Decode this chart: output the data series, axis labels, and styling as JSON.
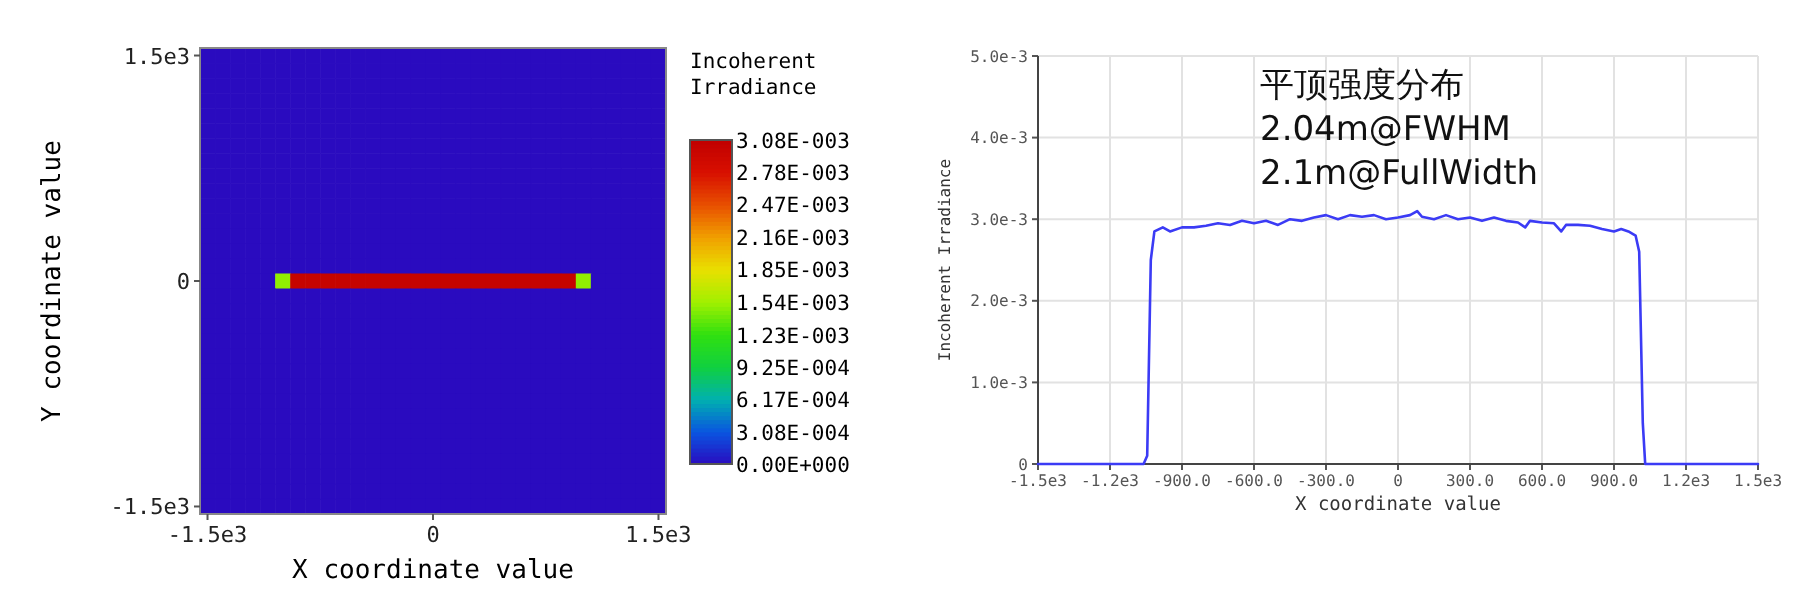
{
  "chart_data": [
    {
      "type": "heatmap",
      "xlabel": "X coordinate value",
      "ylabel": "Y coordinate value",
      "clabel": "Incoherent Irradiance",
      "clim": [
        0,
        0.00308
      ],
      "cticks": [
        {
          "value": 0,
          "label": "0.00E+000"
        },
        {
          "value": 0.000308,
          "label": "3.08E-004"
        },
        {
          "value": 0.000617,
          "label": "6.17E-004"
        },
        {
          "value": 0.000925,
          "label": "9.25E-004"
        },
        {
          "value": 0.00123,
          "label": "1.23E-003"
        },
        {
          "value": 0.00154,
          "label": "1.54E-003"
        },
        {
          "value": 0.00185,
          "label": "1.85E-003"
        },
        {
          "value": 0.00216,
          "label": "2.16E-003"
        },
        {
          "value": 0.00247,
          "label": "2.47E-003"
        },
        {
          "value": 0.00278,
          "label": "2.78E-003"
        },
        {
          "value": 0.00308,
          "label": "3.08E-003"
        }
      ],
      "colors": [
        "#2a0bbf",
        "#0a55e0",
        "#00b0b0",
        "#10d040",
        "#30e010",
        "#a0f000",
        "#e8e000",
        "#f0a000",
        "#e85000",
        "#d81000",
        "#c00000"
      ],
      "categories": [
        "-1.5e3",
        null,
        null,
        null,
        null,
        null,
        null,
        null,
        null,
        null,
        null,
        null,
        null,
        null,
        null,
        "0",
        null,
        null,
        null,
        null,
        null,
        null,
        null,
        null,
        null,
        null,
        null,
        null,
        null,
        null,
        "1.5e3"
      ],
      "y_categories": [
        "1.5e3",
        null,
        null,
        null,
        null,
        null,
        null,
        null,
        null,
        null,
        null,
        null,
        null,
        null,
        null,
        "0",
        null,
        null,
        null,
        null,
        null,
        null,
        null,
        null,
        null,
        null,
        null,
        null,
        null,
        null,
        "-1.5e3"
      ],
      "cells": [
        [
          0,
          0,
          0,
          0,
          0,
          0,
          0,
          0,
          0,
          0,
          0,
          0,
          0,
          0,
          0,
          0,
          0,
          0,
          0,
          0,
          0,
          0,
          0,
          0,
          0,
          0,
          0,
          0,
          0,
          0,
          0
        ],
        [
          0,
          0,
          0,
          0,
          0,
          0,
          0,
          0,
          0,
          0,
          0,
          0,
          0,
          0,
          0,
          0,
          0,
          0,
          0,
          0,
          0,
          0,
          0,
          0,
          0,
          0,
          0,
          0,
          0,
          0,
          0
        ],
        [
          0,
          0,
          0,
          0,
          0,
          0,
          0,
          0,
          0,
          0,
          0,
          0,
          0,
          0,
          0,
          0,
          0,
          0,
          0,
          0,
          0,
          0,
          0,
          0,
          0,
          0,
          0,
          0,
          0,
          0,
          0
        ],
        [
          0,
          0,
          0,
          0,
          0,
          0,
          0,
          0,
          0,
          0,
          0,
          0,
          0,
          0,
          0,
          0,
          0,
          0,
          0,
          0,
          0,
          0,
          0,
          0,
          0,
          0,
          0,
          0,
          0,
          0,
          0
        ],
        [
          0,
          0,
          0,
          0,
          0,
          0,
          0,
          0,
          0,
          0,
          0,
          0,
          0,
          0,
          0,
          0,
          0,
          0,
          0,
          0,
          0,
          0,
          0,
          0,
          0,
          0,
          0,
          0,
          0,
          0,
          0
        ],
        [
          0,
          0,
          0,
          0,
          0,
          0,
          0,
          0,
          0,
          0,
          0,
          0,
          0,
          0,
          0,
          0,
          0,
          0,
          0,
          0,
          0,
          0,
          0,
          0,
          0,
          0,
          0,
          0,
          0,
          0,
          0
        ],
        [
          0,
          0,
          0,
          0,
          0,
          0,
          0,
          0,
          0,
          0,
          0,
          0,
          0,
          0,
          0,
          0,
          0,
          0,
          0,
          0,
          0,
          0,
          0,
          0,
          0,
          0,
          0,
          0,
          0,
          0,
          0
        ],
        [
          0,
          0,
          0,
          0,
          0,
          0,
          0,
          0,
          0,
          0,
          0,
          0,
          0,
          0,
          0,
          0,
          0,
          0,
          0,
          0,
          0,
          0,
          0,
          0,
          0,
          0,
          0,
          0,
          0,
          0,
          0
        ],
        [
          0,
          0,
          0,
          0,
          0,
          0,
          0,
          0,
          0,
          0,
          0,
          0,
          0,
          0,
          0,
          0,
          0,
          0,
          0,
          0,
          0,
          0,
          0,
          0,
          0,
          0,
          0,
          0,
          0,
          0,
          0
        ],
        [
          0,
          0,
          0,
          0,
          0,
          0,
          0,
          0,
          0,
          0,
          0,
          0,
          0,
          0,
          0,
          0,
          0,
          0,
          0,
          0,
          0,
          0,
          0,
          0,
          0,
          0,
          0,
          0,
          0,
          0,
          0
        ],
        [
          0,
          0,
          0,
          0,
          0,
          0,
          0,
          0,
          0,
          0,
          0,
          0,
          0,
          0,
          0,
          0,
          0,
          0,
          0,
          0,
          0,
          0,
          0,
          0,
          0,
          0,
          0,
          0,
          0,
          0,
          0
        ],
        [
          0,
          0,
          0,
          0,
          0,
          0,
          0,
          0,
          0,
          0,
          0,
          0,
          0,
          0,
          0,
          0,
          0,
          0,
          0,
          0,
          0,
          0,
          0,
          0,
          0,
          0,
          0,
          0,
          0,
          0,
          0
        ],
        [
          0,
          0,
          0,
          0,
          0,
          0,
          0,
          0,
          0,
          0,
          0,
          0,
          0,
          0,
          0,
          0,
          0,
          0,
          0,
          0,
          0,
          0,
          0,
          0,
          0,
          0,
          0,
          0,
          0,
          0,
          0
        ],
        [
          0,
          0,
          0,
          0,
          0,
          0,
          0,
          0,
          0,
          0,
          0,
          0,
          0,
          0,
          0,
          0,
          0,
          0,
          0,
          0,
          0,
          0,
          0,
          0,
          0,
          0,
          0,
          0,
          0,
          0,
          0
        ],
        [
          0,
          0,
          0,
          0,
          0,
          0,
          0,
          0,
          0,
          0,
          0,
          0,
          0,
          0,
          0,
          0,
          0,
          0,
          0,
          0,
          0,
          0,
          0,
          0,
          0,
          0,
          0,
          0,
          0,
          0,
          0
        ],
        [
          0,
          0,
          0,
          0,
          0,
          0.0015,
          0.003,
          0.003,
          0.003,
          0.003,
          0.003,
          0.003,
          0.003,
          0.003,
          0.003,
          0.003,
          0.003,
          0.003,
          0.003,
          0.003,
          0.003,
          0.003,
          0.003,
          0.003,
          0.003,
          0.0015,
          0,
          0,
          0,
          0,
          0
        ],
        [
          0,
          0,
          0,
          0,
          0,
          0,
          0,
          0,
          0,
          0,
          0,
          0,
          0,
          0,
          0,
          0,
          0,
          0,
          0,
          0,
          0,
          0,
          0,
          0,
          0,
          0,
          0,
          0,
          0,
          0,
          0
        ],
        [
          0,
          0,
          0,
          0,
          0,
          0,
          0,
          0,
          0,
          0,
          0,
          0,
          0,
          0,
          0,
          0,
          0,
          0,
          0,
          0,
          0,
          0,
          0,
          0,
          0,
          0,
          0,
          0,
          0,
          0,
          0
        ],
        [
          0,
          0,
          0,
          0,
          0,
          0,
          0,
          0,
          0,
          0,
          0,
          0,
          0,
          0,
          0,
          0,
          0,
          0,
          0,
          0,
          0,
          0,
          0,
          0,
          0,
          0,
          0,
          0,
          0,
          0,
          0
        ],
        [
          0,
          0,
          0,
          0,
          0,
          0,
          0,
          0,
          0,
          0,
          0,
          0,
          0,
          0,
          0,
          0,
          0,
          0,
          0,
          0,
          0,
          0,
          0,
          0,
          0,
          0,
          0,
          0,
          0,
          0,
          0
        ],
        [
          0,
          0,
          0,
          0,
          0,
          0,
          0,
          0,
          0,
          0,
          0,
          0,
          0,
          0,
          0,
          0,
          0,
          0,
          0,
          0,
          0,
          0,
          0,
          0,
          0,
          0,
          0,
          0,
          0,
          0,
          0
        ],
        [
          0,
          0,
          0,
          0,
          0,
          0,
          0,
          0,
          0,
          0,
          0,
          0,
          0,
          0,
          0,
          0,
          0,
          0,
          0,
          0,
          0,
          0,
          0,
          0,
          0,
          0,
          0,
          0,
          0,
          0,
          0
        ],
        [
          0,
          0,
          0,
          0,
          0,
          0,
          0,
          0,
          0,
          0,
          0,
          0,
          0,
          0,
          0,
          0,
          0,
          0,
          0,
          0,
          0,
          0,
          0,
          0,
          0,
          0,
          0,
          0,
          0,
          0,
          0
        ],
        [
          0,
          0,
          0,
          0,
          0,
          0,
          0,
          0,
          0,
          0,
          0,
          0,
          0,
          0,
          0,
          0,
          0,
          0,
          0,
          0,
          0,
          0,
          0,
          0,
          0,
          0,
          0,
          0,
          0,
          0,
          0
        ],
        [
          0,
          0,
          0,
          0,
          0,
          0,
          0,
          0,
          0,
          0,
          0,
          0,
          0,
          0,
          0,
          0,
          0,
          0,
          0,
          0,
          0,
          0,
          0,
          0,
          0,
          0,
          0,
          0,
          0,
          0,
          0
        ],
        [
          0,
          0,
          0,
          0,
          0,
          0,
          0,
          0,
          0,
          0,
          0,
          0,
          0,
          0,
          0,
          0,
          0,
          0,
          0,
          0,
          0,
          0,
          0,
          0,
          0,
          0,
          0,
          0,
          0,
          0,
          0
        ],
        [
          0,
          0,
          0,
          0,
          0,
          0,
          0,
          0,
          0,
          0,
          0,
          0,
          0,
          0,
          0,
          0,
          0,
          0,
          0,
          0,
          0,
          0,
          0,
          0,
          0,
          0,
          0,
          0,
          0,
          0,
          0
        ],
        [
          0,
          0,
          0,
          0,
          0,
          0,
          0,
          0,
          0,
          0,
          0,
          0,
          0,
          0,
          0,
          0,
          0,
          0,
          0,
          0,
          0,
          0,
          0,
          0,
          0,
          0,
          0,
          0,
          0,
          0,
          0
        ],
        [
          0,
          0,
          0,
          0,
          0,
          0,
          0,
          0,
          0,
          0,
          0,
          0,
          0,
          0,
          0,
          0,
          0,
          0,
          0,
          0,
          0,
          0,
          0,
          0,
          0,
          0,
          0,
          0,
          0,
          0,
          0
        ],
        [
          0,
          0,
          0,
          0,
          0,
          0,
          0,
          0,
          0,
          0,
          0,
          0,
          0,
          0,
          0,
          0,
          0,
          0,
          0,
          0,
          0,
          0,
          0,
          0,
          0,
          0,
          0,
          0,
          0,
          0,
          0
        ],
        [
          0,
          0,
          0,
          0,
          0,
          0,
          0,
          0,
          0,
          0,
          0,
          0,
          0,
          0,
          0,
          0,
          0,
          0,
          0,
          0,
          0,
          0,
          0,
          0,
          0,
          0,
          0,
          0,
          0,
          0,
          0
        ]
      ]
    },
    {
      "type": "line",
      "xlabel": "X coordinate value",
      "ylabel": "Incoherent Irradiance",
      "annotations": [
        "平顶强度分布",
        "2.04m@FWHM",
        "2.1m@FullWidth"
      ],
      "xlim": [
        -1500,
        1500
      ],
      "ylim": [
        0,
        0.005
      ],
      "xticks": [
        {
          "value": -1500,
          "label": "-1.5e3"
        },
        {
          "value": -1200,
          "label": "-1.2e3"
        },
        {
          "value": -900,
          "label": "-900.0"
        },
        {
          "value": -600,
          "label": "-600.0"
        },
        {
          "value": -300,
          "label": "-300.0"
        },
        0,
        {
          "value": 300,
          "label": "300.0"
        },
        {
          "value": 600,
          "label": "600.0"
        },
        {
          "value": 900,
          "label": "900.0"
        },
        {
          "value": 1200,
          "label": "1.2e3"
        },
        {
          "value": 1500,
          "label": "1.5e3"
        }
      ],
      "yticks": [
        0,
        {
          "value": 0.001,
          "label": "1.0e-3"
        },
        {
          "value": 0.002,
          "label": "2.0e-3"
        },
        {
          "value": 0.003,
          "label": "3.0e-3"
        },
        {
          "value": 0.004,
          "label": "4.0e-3"
        },
        {
          "value": 0.005,
          "label": "5.0e-3"
        }
      ],
      "grid": true,
      "marker": "none",
      "line_style": "solid",
      "series": [
        {
          "color": "#3b3bf5",
          "x": [
            -1500,
            -1060,
            -1045,
            -1030,
            -1015,
            -980,
            -950,
            -900,
            -850,
            -800,
            -750,
            -700,
            -650,
            -600,
            -550,
            -500,
            -450,
            -400,
            -350,
            -300,
            -250,
            -200,
            -150,
            -100,
            -50,
            0,
            50,
            80,
            100,
            150,
            200,
            250,
            300,
            350,
            400,
            450,
            500,
            530,
            550,
            600,
            650,
            680,
            700,
            750,
            800,
            850,
            900,
            930,
            960,
            990,
            1005,
            1020,
            1030,
            1500
          ],
          "values": [
            0,
            0,
            0.0001,
            0.0025,
            0.00285,
            0.0029,
            0.00285,
            0.0029,
            0.0029,
            0.00292,
            0.00295,
            0.00293,
            0.00298,
            0.00295,
            0.00298,
            0.00293,
            0.003,
            0.00298,
            0.00302,
            0.00305,
            0.003,
            0.00305,
            0.00303,
            0.00305,
            0.003,
            0.00302,
            0.00305,
            0.0031,
            0.00303,
            0.003,
            0.00305,
            0.003,
            0.00302,
            0.00298,
            0.00302,
            0.00298,
            0.00296,
            0.0029,
            0.00298,
            0.00296,
            0.00295,
            0.00285,
            0.00293,
            0.00293,
            0.00292,
            0.00288,
            0.00285,
            0.00288,
            0.00285,
            0.0028,
            0.0026,
            0.0005,
            0,
            0
          ]
        }
      ]
    }
  ]
}
